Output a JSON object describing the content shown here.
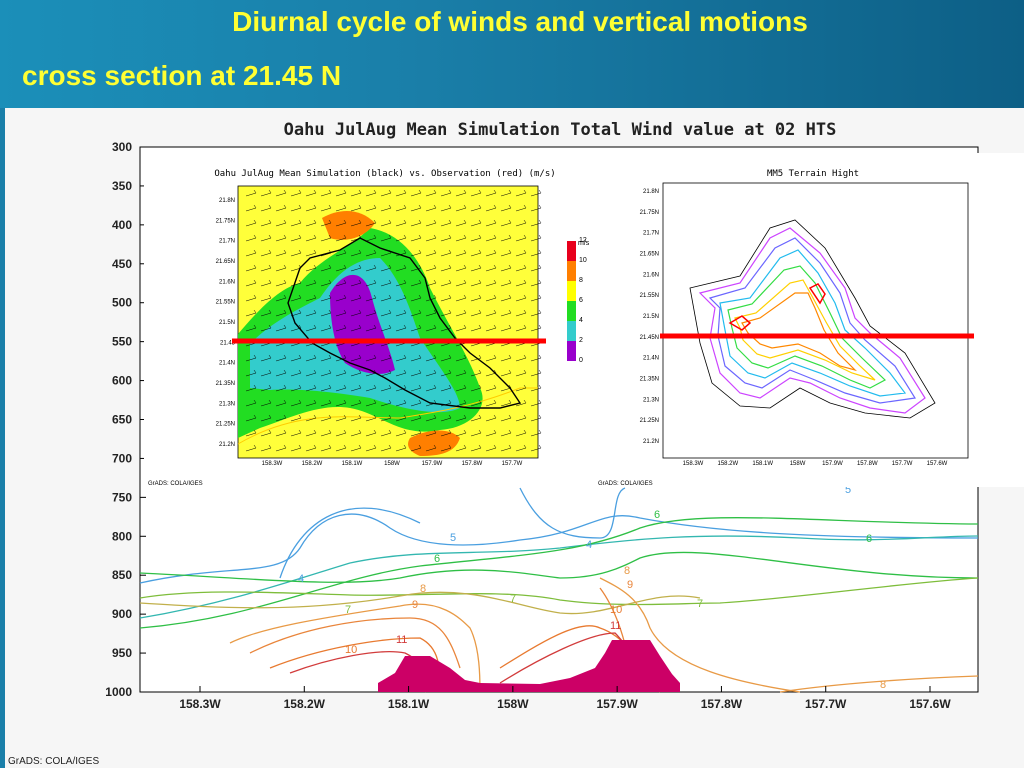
{
  "header": {
    "title": "Diurnal cycle of winds and vertical motions",
    "subtitle": "cross section at 21.45 N"
  },
  "main_plot": {
    "title": "Oahu JulAug Mean Simulation Total Wind value at 02 HTS",
    "y_ticks": [
      "300",
      "350",
      "400",
      "450",
      "500",
      "550",
      "600",
      "650",
      "700",
      "750",
      "800",
      "850",
      "900",
      "950",
      "1000"
    ],
    "x_ticks": [
      "158.3W",
      "158.2W",
      "158.1W",
      "158W",
      "157.9W",
      "157.8W",
      "157.7W",
      "157.6W"
    ],
    "contour_labels": [
      "4",
      "5",
      "5",
      "4",
      "6",
      "6",
      "6",
      "7",
      "7",
      "7",
      "8",
      "8",
      "9",
      "9",
      "10",
      "10",
      "11",
      "11",
      "8"
    ],
    "credit": "GrADS: COLA/IGES"
  },
  "inset_wind": {
    "title": "Oahu JulAug Mean Simulation (black) vs. Observation (red) (m/s)",
    "y_ticks": [
      "21.8N",
      "21.75N",
      "21.7N",
      "21.65N",
      "21.6N",
      "21.55N",
      "21.5N",
      "21.45",
      "21.4N",
      "21.35N",
      "21.3N",
      "21.25N",
      "21.2N"
    ],
    "x_ticks": [
      "158.3W",
      "158.2W",
      "158.1W",
      "158W",
      "157.9W",
      "157.8W",
      "157.7W"
    ],
    "legend_unit": "m/s",
    "legend_levels": [
      "12",
      "10",
      "8",
      "6",
      "4",
      "2",
      "0"
    ],
    "legend_colors": [
      "#e8001c",
      "#ff7f00",
      "#ffff00",
      "#22dd22",
      "#33cccc",
      "#9900cc"
    ],
    "credit": "GrADS: COLA/IGES"
  },
  "inset_terrain": {
    "title": "MM5 Terrain Hight",
    "y_ticks": [
      "21.8N",
      "21.75N",
      "21.7N",
      "21.65N",
      "21.6N",
      "21.55N",
      "21.5N",
      "21.45N",
      "21.4N",
      "21.35N",
      "21.3N",
      "21.25N",
      "21.2N"
    ],
    "x_ticks": [
      "158.3W",
      "158.2W",
      "158.1W",
      "158W",
      "157.9W",
      "157.8W",
      "157.7W",
      "157.6W"
    ],
    "credit": "GrADS: COLA/IGES"
  },
  "footer": {
    "credit": "GrADS: COLA/IGES"
  },
  "colors": {
    "header_bg": "#1a7fa9",
    "title_text": "#ffff33",
    "terrain": "#cc0066",
    "section_line": "#ff0000"
  }
}
